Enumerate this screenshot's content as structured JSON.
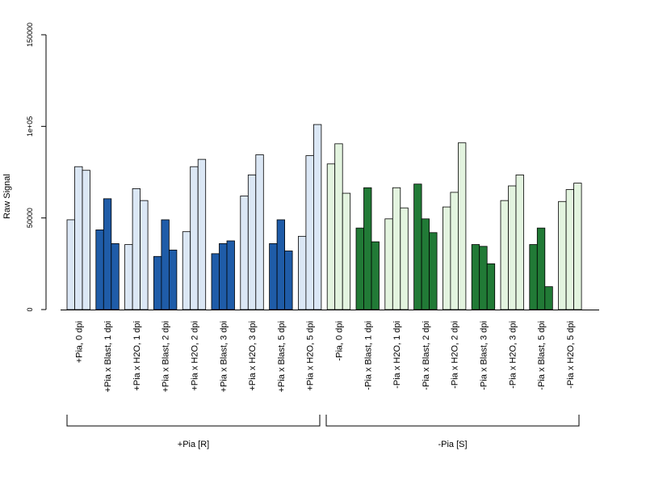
{
  "chart_data": {
    "type": "bar",
    "ylabel": "Raw Signal",
    "xlabel": "",
    "title": "",
    "ylim": [
      0,
      150000
    ],
    "yticks": [
      0,
      50000,
      100000,
      150000
    ],
    "ytick_labels": [
      "0",
      "50000",
      "1e+05",
      "150000"
    ],
    "grid": false,
    "legend": "none",
    "categories": [
      "+Pia, 0 dpi",
      "+Pia x Blast, 1 dpi",
      "+Pia x H2O, 1 dpi",
      "+Pia x Blast, 2 dpi",
      "+Pia x H2O, 2 dpi",
      "+Pia x Blast, 3 dpi",
      "+Pia x H2O, 3 dpi",
      "+Pia x Blast, 5 dpi",
      "+Pia x H2O, 5 dpi",
      "-Pia, 0 dpi",
      "-Pia x Blast, 1 dpi",
      "-Pia x H2O, 1 dpi",
      "-Pia x Blast, 2 dpi",
      "-Pia x H2O, 2 dpi",
      "-Pia x Blast, 3 dpi",
      "-Pia x H2O, 3 dpi",
      "-Pia x Blast, 5 dpi",
      "-Pia x H2O, 5 dpi"
    ],
    "replicates": [
      [
        49000,
        78000,
        76000
      ],
      [
        43500,
        60500,
        36000
      ],
      [
        35500,
        66000,
        59500
      ],
      [
        29000,
        49000,
        32500
      ],
      [
        42500,
        78000,
        82000
      ],
      [
        30500,
        36000,
        37500
      ],
      [
        62000,
        73500,
        84500
      ],
      [
        36000,
        49000,
        32000
      ],
      [
        40000,
        84000,
        101000
      ],
      [
        79500,
        90500,
        63500
      ],
      [
        44500,
        66500,
        37000
      ],
      [
        49500,
        66500,
        55500
      ],
      [
        68500,
        49500,
        42000
      ],
      [
        56000,
        64000,
        91000
      ],
      [
        35500,
        34500,
        25000
      ],
      [
        59500,
        67500,
        73500
      ],
      [
        35500,
        44500,
        12500
      ],
      [
        59000,
        65500,
        69000
      ]
    ],
    "bar_colors": [
      "#dbe7f5",
      "#1f5ca8",
      "#dbe7f5",
      "#1f5ca8",
      "#dbe7f5",
      "#1f5ca8",
      "#dbe7f5",
      "#1f5ca8",
      "#dbe7f5",
      "#e3f4df",
      "#217a36",
      "#e3f4df",
      "#217a36",
      "#e3f4df",
      "#217a36",
      "#e3f4df",
      "#217a36",
      "#e3f4df"
    ],
    "groups": [
      {
        "label": "+Pia [R]",
        "from": 0,
        "to": 8
      },
      {
        "label": "-Pia [S]",
        "from": 9,
        "to": 17
      }
    ]
  }
}
